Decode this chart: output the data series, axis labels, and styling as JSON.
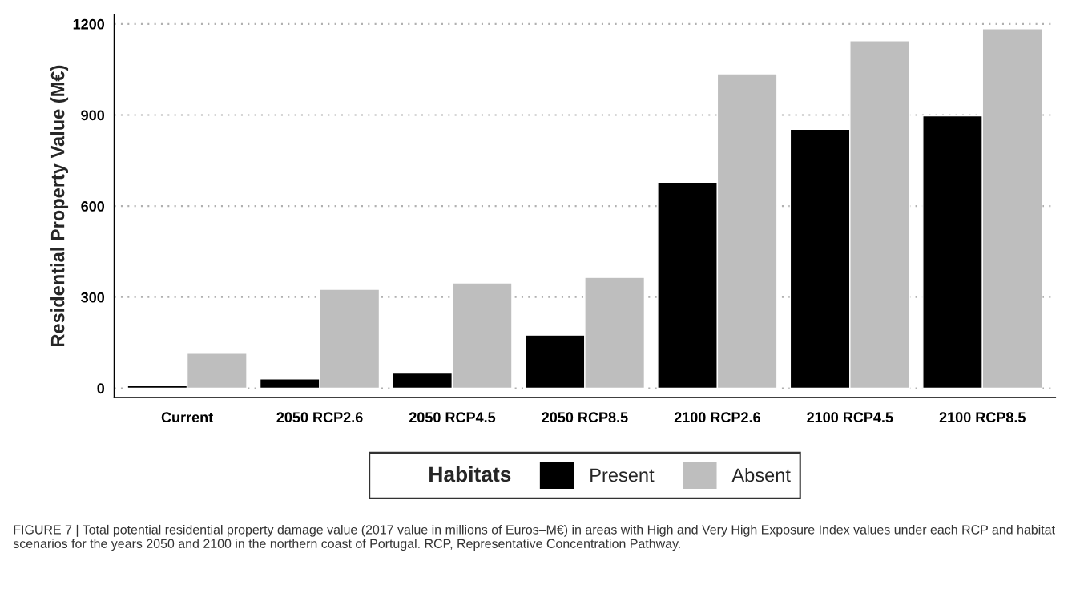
{
  "chart_data": {
    "type": "bar",
    "ylabel": "Residential Property Value (M€)",
    "categories": [
      "Current",
      "2050 RCP2.6",
      "2050 RCP4.5",
      "2050 RCP8.5",
      "2100 RCP2.6",
      "2100 RCP4.5",
      "2100 RCP8.5"
    ],
    "series": [
      {
        "name": "Present",
        "color": "#000000",
        "values": [
          8,
          31,
          50,
          175,
          679,
          853,
          897
        ]
      },
      {
        "name": "Absent",
        "color": "#bebebe",
        "values": [
          115,
          326,
          347,
          365,
          1036,
          1145,
          1184
        ]
      }
    ],
    "legend_title": "Habitats",
    "legend": "bottom",
    "ylim": [
      -30,
      1230
    ],
    "yticks": [
      0,
      300,
      600,
      900,
      1200
    ],
    "grid": "y",
    "annotations": [
      "FIGURE 7 | Total potential residential property damage value (2017 value in millions of Euros–M€) in areas with High and Very High Exposure Index values under each RCP and habitat scenarios for the years 2050 and 2100 in the northern coast of Portugal. RCP, Representative Concentration Pathway."
    ]
  }
}
